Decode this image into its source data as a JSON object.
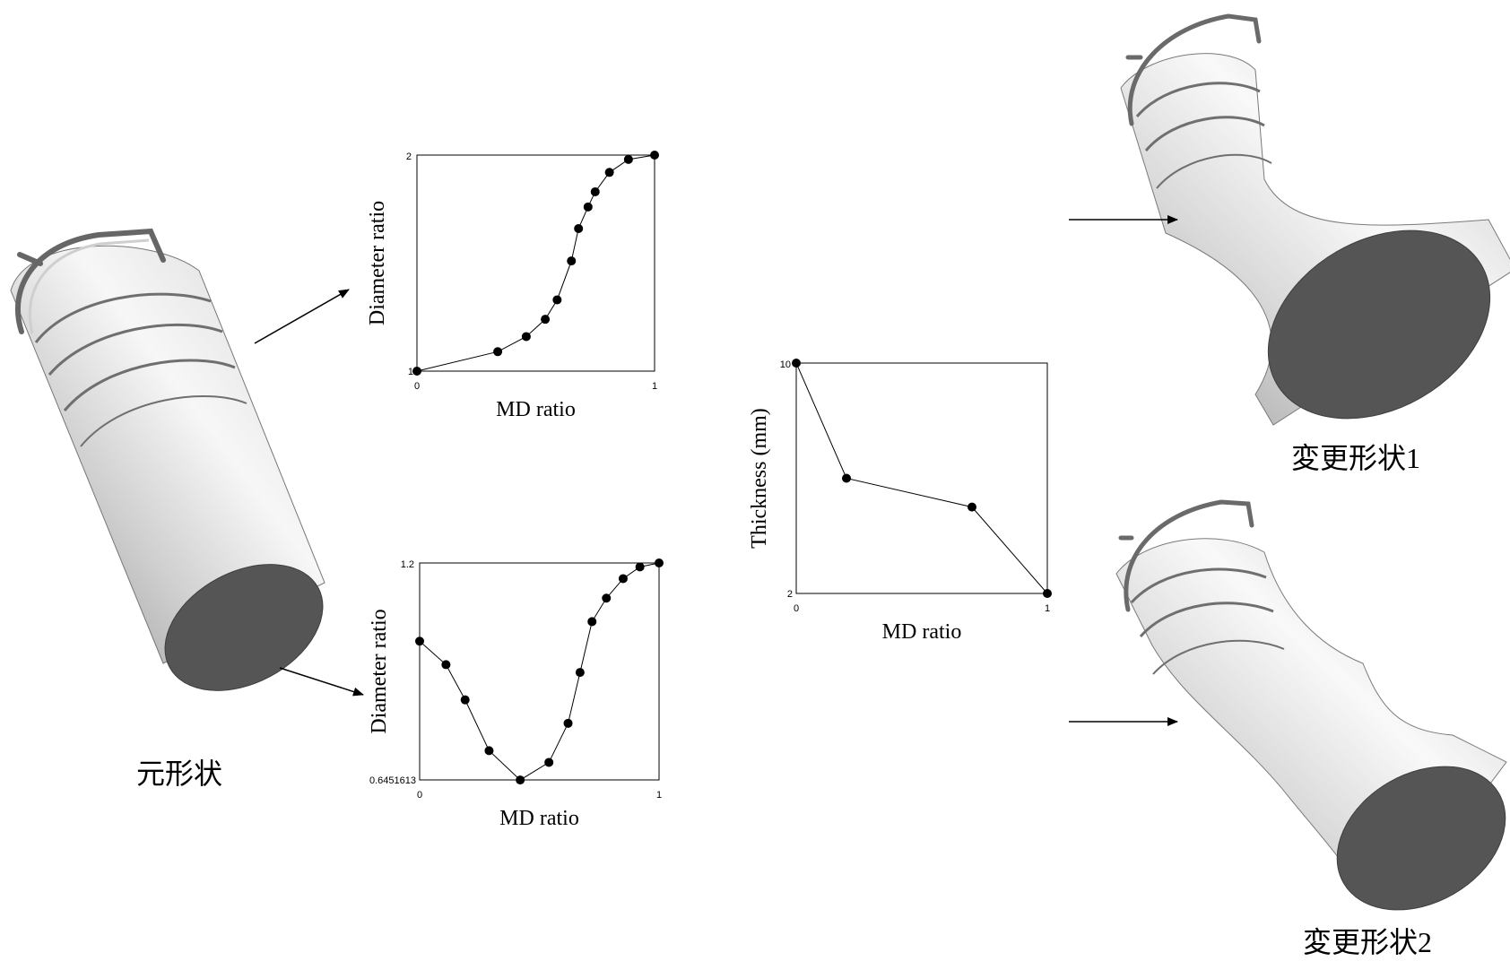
{
  "captions": {
    "original": "元形状",
    "modified1_text": "変更形状",
    "modified1_num": "1",
    "modified2_text": "変更形状",
    "modified2_num": "2"
  },
  "colors": {
    "line": "#000000",
    "cap": "#555555",
    "shade_light": "#f4f4f4",
    "shade_dark": "#8a8a8a"
  },
  "chart_data": [
    {
      "type": "line",
      "xlabel": "MD ratio",
      "ylabel": "Diameter ratio",
      "xlim": [
        0,
        1
      ],
      "ylim": [
        1,
        2
      ],
      "x_ticks": [
        "0",
        "1"
      ],
      "y_ticks": [
        "1",
        "2"
      ],
      "x": [
        0,
        0.34,
        0.46,
        0.54,
        0.59,
        0.65,
        0.68,
        0.72,
        0.75,
        0.81,
        0.89,
        1.0
      ],
      "values": [
        1.0,
        1.09,
        1.16,
        1.24,
        1.33,
        1.51,
        1.66,
        1.76,
        1.83,
        1.92,
        1.98,
        2.0
      ]
    },
    {
      "type": "line",
      "xlabel": "MD ratio",
      "ylabel": "Diameter ratio",
      "xlim": [
        0,
        1
      ],
      "ylim": [
        0.6451613,
        1.2
      ],
      "x_ticks": [
        "0",
        "1"
      ],
      "y_ticks": [
        "0.6451613",
        "1.2"
      ],
      "x": [
        0,
        0.11,
        0.19,
        0.29,
        0.42,
        0.54,
        0.62,
        0.67,
        0.72,
        0.78,
        0.85,
        0.92,
        1.0
      ],
      "values": [
        1.0,
        0.94,
        0.85,
        0.72,
        0.645,
        0.69,
        0.79,
        0.92,
        1.05,
        1.11,
        1.16,
        1.19,
        1.2
      ]
    },
    {
      "type": "line",
      "xlabel": "MD ratio",
      "ylabel": "Thickness (mm)",
      "xlim": [
        0,
        1
      ],
      "ylim": [
        2,
        10
      ],
      "x_ticks": [
        "0",
        "1"
      ],
      "y_ticks": [
        "2",
        "10"
      ],
      "x": [
        0,
        0.2,
        0.7,
        1.0
      ],
      "values": [
        10,
        6,
        5,
        2
      ]
    }
  ]
}
